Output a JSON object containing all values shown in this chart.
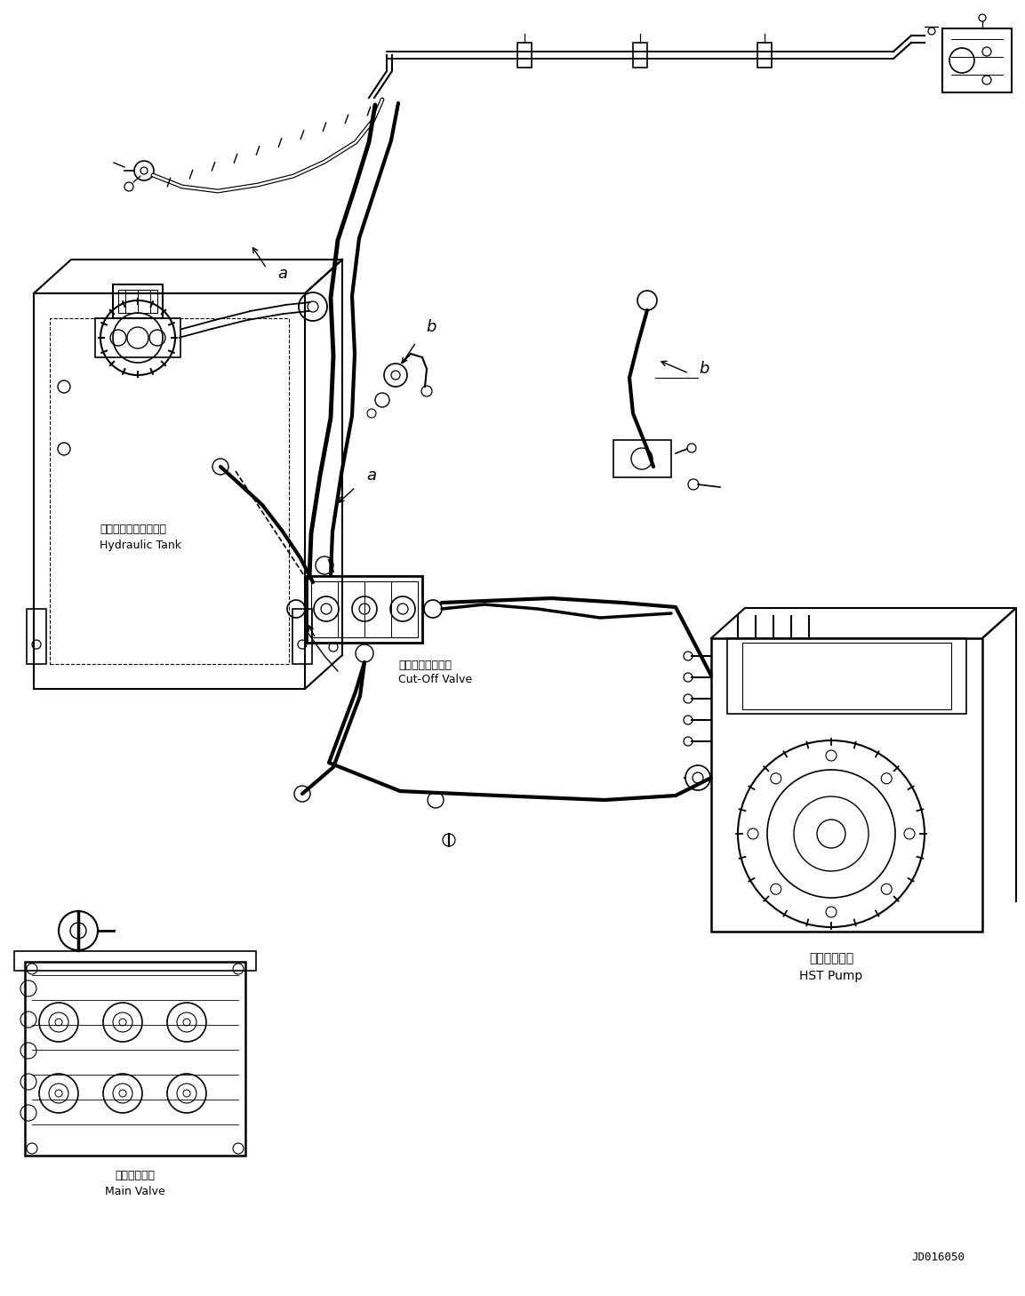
{
  "bg_color": "#ffffff",
  "line_color": "#000000",
  "fig_width": 11.53,
  "fig_height": 14.58,
  "dpi": 100,
  "document_id": "JD016050",
  "labels": {
    "hydraulic_tank_jp": "ハイドロリックタンク",
    "hydraulic_tank_en": "Hydraulic Tank",
    "cutoff_valve_jp": "カットオフバルブ",
    "cutoff_valve_en": "Cut-Off Valve",
    "hst_pump_jp": "ＨＳＴポンプ",
    "hst_pump_en": "HST Pump",
    "main_valve_jp": "メインバルブ",
    "main_valve_en": "Main Valve",
    "label_a": "a",
    "label_b": "b"
  }
}
